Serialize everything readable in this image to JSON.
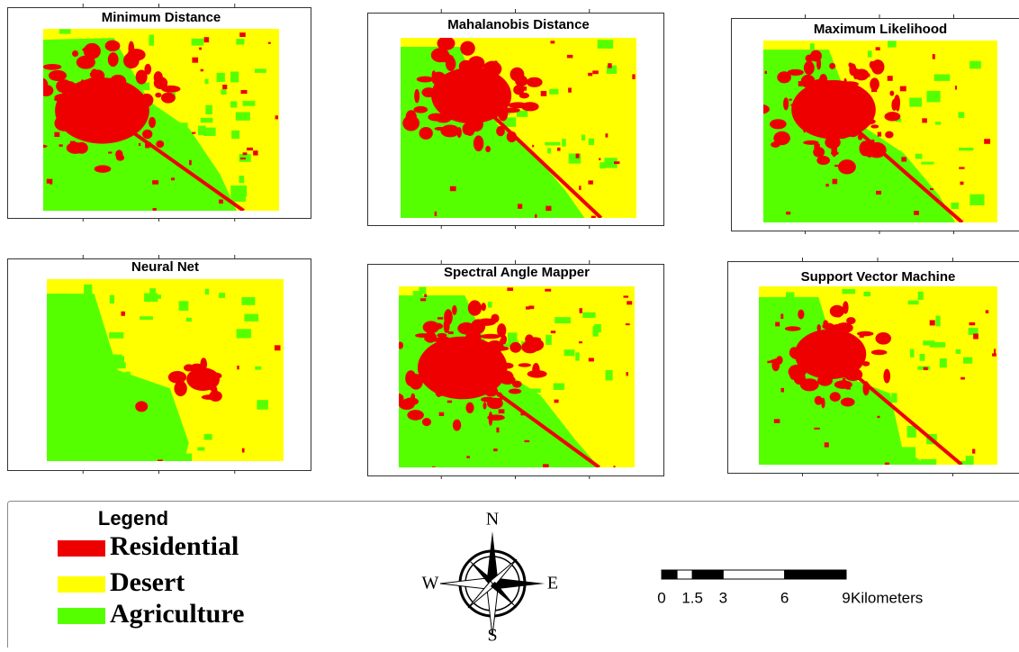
{
  "panels": [
    {
      "title": "Minimum Distance"
    },
    {
      "title": "Mahalanobis Distance"
    },
    {
      "title": "Maximum Likelihood"
    },
    {
      "title": "Neural Net"
    },
    {
      "title": "Spectral Angle Mapper"
    },
    {
      "title": "Support Vector Machine"
    }
  ],
  "legend": {
    "title": "Legend",
    "items": [
      {
        "label": "Residential",
        "color": "#ee0000"
      },
      {
        "label": "Desert",
        "color": "#ffff00"
      },
      {
        "label": "Agriculture",
        "color": "#55ff00"
      }
    ]
  },
  "compass": {
    "north": "N",
    "east": "E",
    "south": "S",
    "west": "W"
  },
  "scale_bar": {
    "unit": "Kilometers",
    "ticks": [
      0,
      1.5,
      3,
      6,
      9
    ]
  }
}
